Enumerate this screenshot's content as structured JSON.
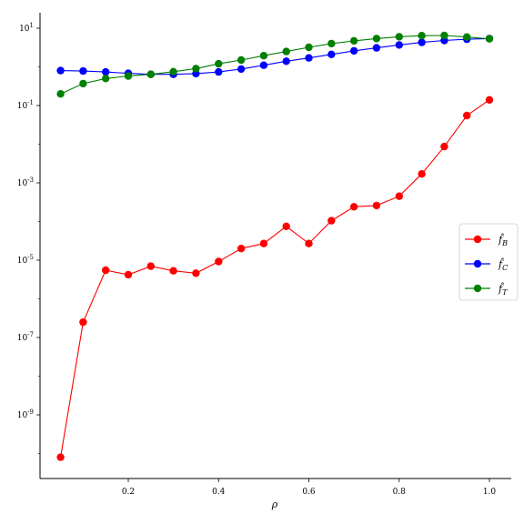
{
  "chart_data": {
    "type": "line",
    "title": "",
    "xlabel": "ρ",
    "ylabel": "",
    "yscale": "log",
    "xlim": [
      0.0,
      1.05
    ],
    "ylim": [
      2e-10,
      20
    ],
    "grid": false,
    "legend_position": "center-right",
    "x": [
      0.05,
      0.1,
      0.15,
      0.2,
      0.25,
      0.3,
      0.35,
      0.4,
      0.45,
      0.5,
      0.55,
      0.6,
      0.65,
      0.7,
      0.75,
      0.8,
      0.85,
      0.9,
      0.95,
      1.0
    ],
    "x_ticks": [
      {
        "value": 0.2,
        "label": "0.2"
      },
      {
        "value": 0.4,
        "label": "0.4"
      },
      {
        "value": 0.6,
        "label": "0.6"
      },
      {
        "value": 0.8,
        "label": "0.8"
      },
      {
        "value": 1.0,
        "label": "1.0"
      }
    ],
    "y_ticks": [
      {
        "value": 1e-09,
        "base": "10",
        "exp": "-9"
      },
      {
        "value": 1e-07,
        "base": "10",
        "exp": "-7"
      },
      {
        "value": 1e-05,
        "base": "10",
        "exp": "-5"
      },
      {
        "value": 0.001,
        "base": "10",
        "exp": "-3"
      },
      {
        "value": 0.1,
        "base": "10",
        "exp": "-1"
      },
      {
        "value": 10,
        "base": "10",
        "exp": "1"
      }
    ],
    "series": [
      {
        "name": "f̂_B",
        "name_main": "f̂",
        "name_sub": "B",
        "color": "#ff0000",
        "values": [
          8e-11,
          2.5e-07,
          5.5e-06,
          4.2e-06,
          7e-06,
          5.3e-06,
          4.6e-06,
          9.2e-06,
          2e-05,
          2.7e-05,
          7.5e-05,
          2.7e-05,
          0.000105,
          0.00024,
          0.00026,
          0.00045,
          0.0017,
          0.0087,
          0.055,
          0.14
        ]
      },
      {
        "name": "f̂_C",
        "name_main": "f̂",
        "name_sub": "C",
        "color": "#0000ff",
        "values": [
          0.8,
          0.78,
          0.74,
          0.68,
          0.64,
          0.64,
          0.67,
          0.74,
          0.88,
          1.1,
          1.4,
          1.7,
          2.1,
          2.6,
          3.1,
          3.7,
          4.3,
          4.8,
          5.2,
          5.4
        ]
      },
      {
        "name": "f̂_T",
        "name_main": "f̂",
        "name_sub": "T",
        "color": "#008000",
        "values": [
          0.2,
          0.37,
          0.5,
          0.58,
          0.64,
          0.75,
          0.9,
          1.2,
          1.5,
          1.95,
          2.5,
          3.2,
          4.0,
          4.7,
          5.4,
          6.0,
          6.4,
          6.5,
          5.9,
          5.3
        ]
      }
    ]
  }
}
